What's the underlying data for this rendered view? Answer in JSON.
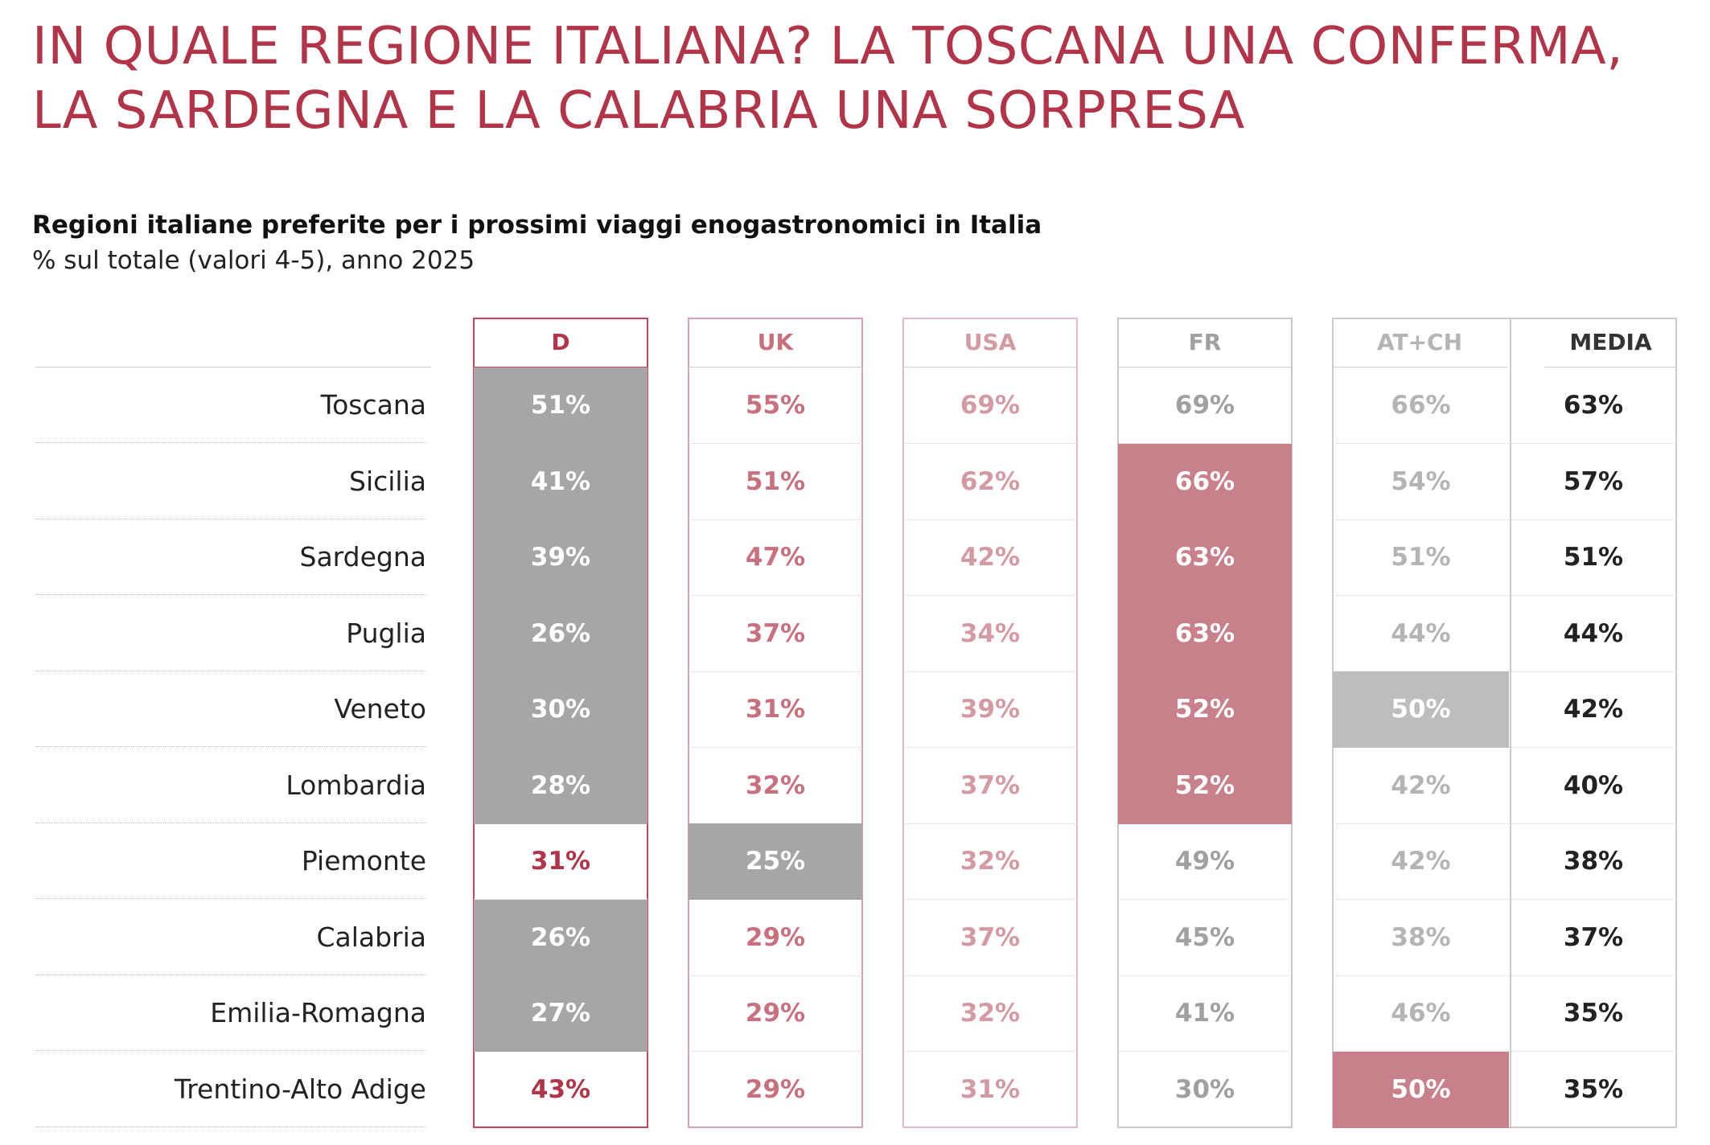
{
  "title": "IN QUALE REGIONE ITALIANA? LA TOSCANA UNA CONFERMA, LA SARDEGNA E LA CALABRIA UNA SORPRESA",
  "colors": {
    "title": "#b23449",
    "d_text": "#b23449",
    "uk_text": "#c8707e",
    "usa_text": "#d49aa4",
    "fr_text": "#a0a0a0",
    "atch_text": "#b4b4b4",
    "media_text": "#222222",
    "d_border": "#c0485c",
    "uk_border": "#d9a3ad",
    "usa_border": "#e3bcc3",
    "fr_border": "#c8c8c8",
    "atch_border": "#cccccc",
    "media_border": "#cccccc",
    "highlight_gray": "#a6a6a6",
    "highlight_light_gray": "#bdbdbd",
    "highlight_red": "#c8808a"
  },
  "chart_data": {
    "type": "table",
    "title": "Regioni italiane preferite per i prossimi viaggi enogastronomici in Italia",
    "subtitle": "% sul totale (valori 4-5), anno 2025",
    "columns": [
      "D",
      "UK",
      "USA",
      "FR",
      "AT+CH",
      "MEDIA"
    ],
    "rows": [
      {
        "region": "Toscana",
        "values": [
          "51%",
          "55%",
          "69%",
          "69%",
          "66%",
          "63%"
        ],
        "highlight": [
          "gray",
          "",
          "",
          "",
          "",
          ""
        ]
      },
      {
        "region": "Sicilia",
        "values": [
          "41%",
          "51%",
          "62%",
          "66%",
          "54%",
          "57%"
        ],
        "highlight": [
          "gray",
          "",
          "",
          "red",
          "",
          ""
        ]
      },
      {
        "region": "Sardegna",
        "values": [
          "39%",
          "47%",
          "42%",
          "63%",
          "51%",
          "51%"
        ],
        "highlight": [
          "gray",
          "",
          "",
          "red",
          "",
          ""
        ]
      },
      {
        "region": "Puglia",
        "values": [
          "26%",
          "37%",
          "34%",
          "63%",
          "44%",
          "44%"
        ],
        "highlight": [
          "gray",
          "",
          "",
          "red",
          "",
          ""
        ]
      },
      {
        "region": "Veneto",
        "values": [
          "30%",
          "31%",
          "39%",
          "52%",
          "50%",
          "42%"
        ],
        "highlight": [
          "gray",
          "",
          "",
          "red",
          "lgray",
          ""
        ]
      },
      {
        "region": "Lombardia",
        "values": [
          "28%",
          "32%",
          "37%",
          "52%",
          "42%",
          "40%"
        ],
        "highlight": [
          "gray",
          "",
          "",
          "red",
          "",
          ""
        ]
      },
      {
        "region": "Piemonte",
        "values": [
          "31%",
          "25%",
          "32%",
          "49%",
          "42%",
          "38%"
        ],
        "highlight": [
          "",
          "gray",
          "",
          "",
          "",
          ""
        ]
      },
      {
        "region": "Calabria",
        "values": [
          "26%",
          "29%",
          "37%",
          "45%",
          "38%",
          "37%"
        ],
        "highlight": [
          "gray",
          "",
          "",
          "",
          "",
          ""
        ]
      },
      {
        "region": "Emilia-Romagna",
        "values": [
          "27%",
          "29%",
          "32%",
          "41%",
          "46%",
          "35%"
        ],
        "highlight": [
          "gray",
          "",
          "",
          "",
          "",
          ""
        ]
      },
      {
        "region": "Trentino-Alto Adige",
        "values": [
          "43%",
          "29%",
          "31%",
          "30%",
          "50%",
          "35%"
        ],
        "highlight": [
          "",
          "",
          "",
          "",
          "red",
          ""
        ]
      }
    ]
  }
}
